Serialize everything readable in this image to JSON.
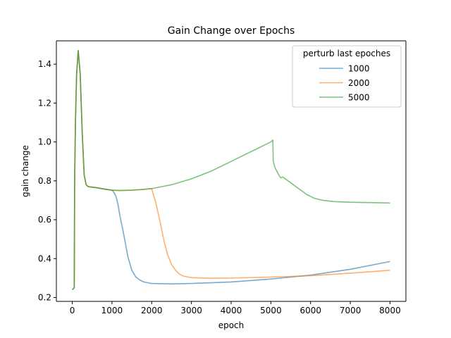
{
  "chart_data": {
    "type": "line",
    "title": "Gain Change over Epochs",
    "xlabel": "epoch",
    "ylabel": "gain change",
    "xlim": [
      -400,
      8400
    ],
    "ylim": [
      0.18,
      1.52
    ],
    "xticks": [
      0,
      1000,
      2000,
      3000,
      4000,
      5000,
      6000,
      7000,
      8000
    ],
    "yticks": [
      0.2,
      0.4,
      0.6,
      0.8,
      1.0,
      1.2,
      1.4
    ],
    "xtick_labels": [
      "0",
      "1000",
      "2000",
      "3000",
      "4000",
      "5000",
      "6000",
      "7000",
      "8000"
    ],
    "ytick_labels": [
      "0.2",
      "0.4",
      "0.6",
      "0.8",
      "1.0",
      "1.2",
      "1.4"
    ],
    "grid": false,
    "legend": {
      "title": "perturb last epoches",
      "position": "top-right"
    },
    "series": [
      {
        "name": "1000",
        "color": "#1f77b4",
        "points": [
          [
            0,
            0.24
          ],
          [
            50,
            0.25
          ],
          [
            60,
            0.8
          ],
          [
            80,
            1.1
          ],
          [
            110,
            1.35
          ],
          [
            150,
            1.47
          ],
          [
            200,
            1.35
          ],
          [
            250,
            1.05
          ],
          [
            300,
            0.83
          ],
          [
            350,
            0.78
          ],
          [
            400,
            0.77
          ],
          [
            600,
            0.765
          ],
          [
            800,
            0.758
          ],
          [
            1000,
            0.752
          ],
          [
            1050,
            0.74
          ],
          [
            1100,
            0.72
          ],
          [
            1150,
            0.68
          ],
          [
            1200,
            0.62
          ],
          [
            1300,
            0.52
          ],
          [
            1400,
            0.41
          ],
          [
            1500,
            0.34
          ],
          [
            1600,
            0.305
          ],
          [
            1700,
            0.29
          ],
          [
            1800,
            0.28
          ],
          [
            2000,
            0.272
          ],
          [
            2500,
            0.27
          ],
          [
            3000,
            0.272
          ],
          [
            4000,
            0.28
          ],
          [
            5000,
            0.295
          ],
          [
            6000,
            0.315
          ],
          [
            7000,
            0.345
          ],
          [
            8000,
            0.385
          ]
        ]
      },
      {
        "name": "2000",
        "color": "#ff7f0e",
        "points": [
          [
            0,
            0.24
          ],
          [
            50,
            0.25
          ],
          [
            60,
            0.8
          ],
          [
            80,
            1.1
          ],
          [
            110,
            1.35
          ],
          [
            150,
            1.47
          ],
          [
            200,
            1.35
          ],
          [
            250,
            1.05
          ],
          [
            300,
            0.83
          ],
          [
            350,
            0.78
          ],
          [
            400,
            0.77
          ],
          [
            600,
            0.765
          ],
          [
            800,
            0.758
          ],
          [
            1000,
            0.752
          ],
          [
            1200,
            0.75
          ],
          [
            1500,
            0.752
          ],
          [
            1800,
            0.756
          ],
          [
            2000,
            0.76
          ],
          [
            2040,
            0.73
          ],
          [
            2100,
            0.69
          ],
          [
            2200,
            0.6
          ],
          [
            2300,
            0.5
          ],
          [
            2400,
            0.42
          ],
          [
            2500,
            0.37
          ],
          [
            2600,
            0.34
          ],
          [
            2700,
            0.32
          ],
          [
            2800,
            0.31
          ],
          [
            3000,
            0.302
          ],
          [
            3500,
            0.299
          ],
          [
            4000,
            0.3
          ],
          [
            5000,
            0.305
          ],
          [
            6000,
            0.312
          ],
          [
            7000,
            0.325
          ],
          [
            8000,
            0.34
          ]
        ]
      },
      {
        "name": "5000",
        "color": "#2ca02c",
        "points": [
          [
            0,
            0.24
          ],
          [
            50,
            0.25
          ],
          [
            60,
            0.8
          ],
          [
            80,
            1.1
          ],
          [
            110,
            1.35
          ],
          [
            150,
            1.47
          ],
          [
            200,
            1.35
          ],
          [
            250,
            1.05
          ],
          [
            300,
            0.83
          ],
          [
            350,
            0.78
          ],
          [
            400,
            0.77
          ],
          [
            600,
            0.765
          ],
          [
            800,
            0.758
          ],
          [
            1000,
            0.752
          ],
          [
            1200,
            0.75
          ],
          [
            1500,
            0.752
          ],
          [
            1800,
            0.756
          ],
          [
            2000,
            0.76
          ],
          [
            2500,
            0.78
          ],
          [
            3000,
            0.81
          ],
          [
            3500,
            0.85
          ],
          [
            4000,
            0.9
          ],
          [
            4500,
            0.95
          ],
          [
            5000,
            1.0
          ],
          [
            5050,
            1.01
          ],
          [
            5060,
            0.9
          ],
          [
            5100,
            0.87
          ],
          [
            5200,
            0.83
          ],
          [
            5250,
            0.815
          ],
          [
            5300,
            0.82
          ],
          [
            5400,
            0.805
          ],
          [
            5500,
            0.79
          ],
          [
            5700,
            0.76
          ],
          [
            5900,
            0.73
          ],
          [
            6100,
            0.71
          ],
          [
            6300,
            0.7
          ],
          [
            6600,
            0.693
          ],
          [
            7000,
            0.69
          ],
          [
            7500,
            0.688
          ],
          [
            8000,
            0.686
          ]
        ]
      }
    ]
  }
}
